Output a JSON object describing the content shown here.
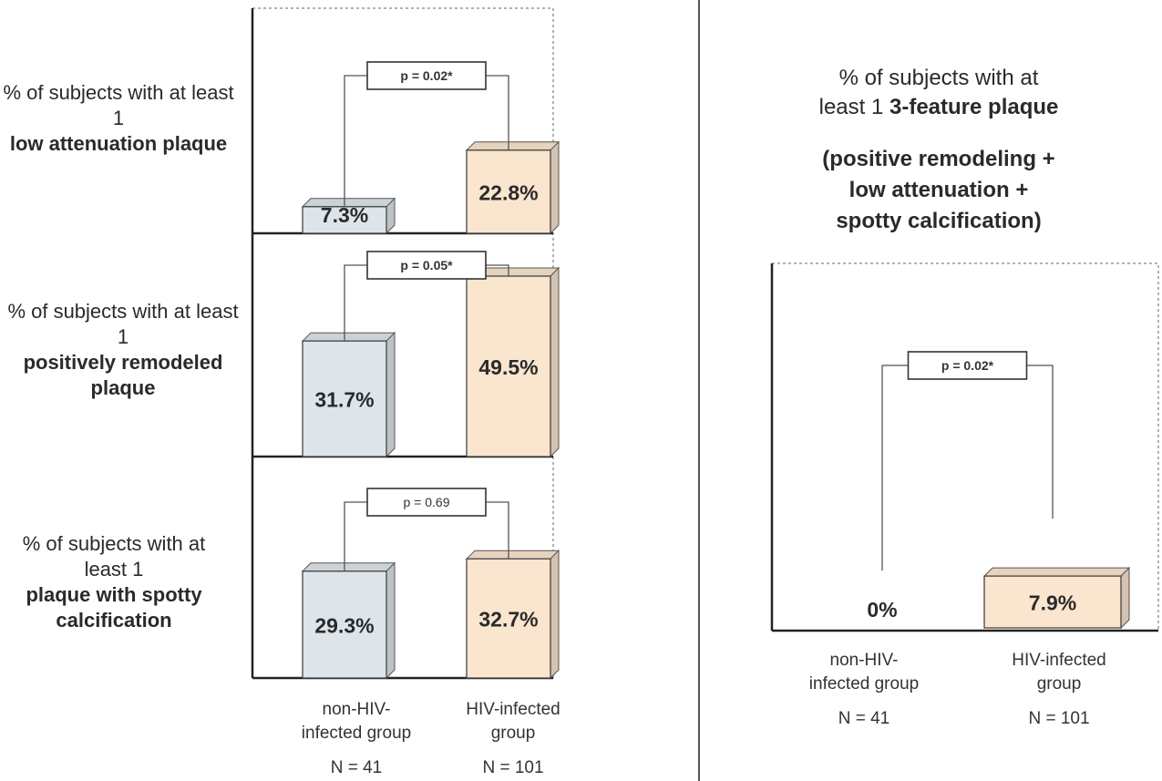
{
  "chart_data": [
    {
      "type": "bar",
      "row_label": {
        "pre": "% of subjects with at least 1",
        "bold": "low attenuation plaque"
      },
      "categories": [
        "non-HIV-infected group",
        "HIV-infected group"
      ],
      "values": [
        7.3,
        22.8
      ],
      "value_labels": [
        "7.3%",
        "22.8%"
      ],
      "p_value": "p = 0.02*",
      "ylim": [
        0,
        60
      ]
    },
    {
      "type": "bar",
      "row_label": {
        "pre": "% of subjects with at least 1",
        "bold": "positively remodeled  plaque"
      },
      "categories": [
        "non-HIV-infected group",
        "HIV-infected group"
      ],
      "values": [
        31.7,
        49.5
      ],
      "value_labels": [
        "31.7%",
        "49.5%"
      ],
      "p_value": "p = 0.05*",
      "ylim": [
        0,
        60
      ]
    },
    {
      "type": "bar",
      "row_label": {
        "pre": "% of subjects with at least 1",
        "bold": "plaque with spotty calcification"
      },
      "categories": [
        "non-HIV-infected group",
        "HIV-infected group"
      ],
      "values": [
        29.3,
        32.7
      ],
      "value_labels": [
        "29.3%",
        "32.7%"
      ],
      "p_value": "p = 0.69",
      "ylim": [
        0,
        60
      ]
    },
    {
      "type": "bar",
      "title_line1": "% of subjects with at",
      "title_line2_pre": "least 1",
      "title_line2_bold": "3-feature plaque",
      "subtitle_lines": [
        "(positive remodeling +",
        "low attenuation +",
        "spotty calcification)"
      ],
      "categories": [
        "non-HIV-infected group",
        "HIV-infected group"
      ],
      "values": [
        0,
        7.9
      ],
      "value_labels": [
        "0%",
        "7.9%"
      ],
      "p_value": "p = 0.02*",
      "ylim": [
        0,
        60
      ]
    }
  ],
  "groups": {
    "left": {
      "line1": "non-HIV-",
      "line2": "infected group",
      "n": "N = 41"
    },
    "right": {
      "line1": "HIV-infected",
      "line2": "group",
      "n": "N = 101"
    }
  },
  "colors": {
    "non_hiv_bar": "#dde5ea",
    "hiv_bar": "#fae5cf",
    "axis": "#333333"
  }
}
